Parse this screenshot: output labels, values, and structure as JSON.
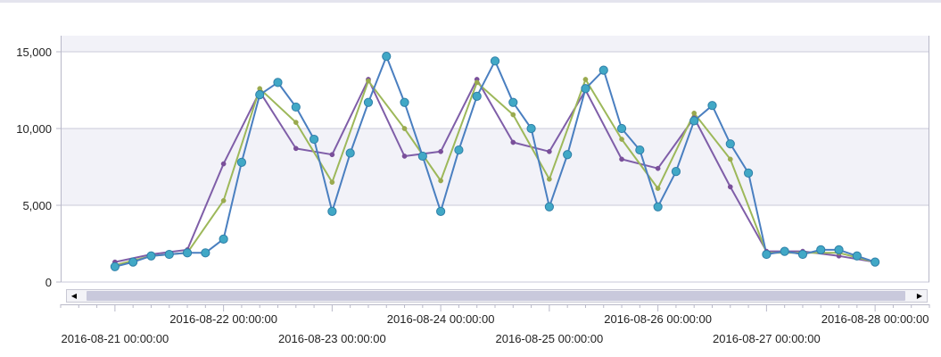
{
  "chart_data": {
    "type": "line",
    "title": "",
    "xlabel": "",
    "ylabel": "",
    "ylim": [
      0,
      15500
    ],
    "yticks": [
      0,
      5000,
      10000,
      15000
    ],
    "ytick_labels": [
      "0",
      "5,000",
      "10,000",
      "15,000"
    ],
    "xlim": [
      "2016-08-20 12:00:00",
      "2016-08-28 12:00:00"
    ],
    "xtick_labels_upper": [
      "2016-08-22 00:00:00",
      "2016-08-24 00:00:00",
      "2016-08-26 00:00:00",
      "2016-08-28 00:00:00"
    ],
    "xtick_labels_lower": [
      "2016-08-21 00:00:00",
      "2016-08-23 00:00:00",
      "2016-08-25 00:00:00",
      "2016-08-27 00:00:00"
    ],
    "grid": "horizontal bands",
    "series": [
      {
        "color": "#4a7fc0",
        "marker": "large-circle",
        "marker_color": "#41a8c6",
        "points": [
          [
            "2016-08-21 00:00",
            1000
          ],
          [
            "2016-08-21 04:00",
            1300
          ],
          [
            "2016-08-21 08:00",
            1700
          ],
          [
            "2016-08-21 12:00",
            1800
          ],
          [
            "2016-08-21 16:00",
            1900
          ],
          [
            "2016-08-21 20:00",
            1900
          ],
          [
            "2016-08-22 00:00",
            2800
          ],
          [
            "2016-08-22 04:00",
            7800
          ],
          [
            "2016-08-22 08:00",
            12200
          ],
          [
            "2016-08-22 12:00",
            13000
          ],
          [
            "2016-08-22 16:00",
            11400
          ],
          [
            "2016-08-22 20:00",
            9300
          ],
          [
            "2016-08-23 00:00",
            4600
          ],
          [
            "2016-08-23 04:00",
            8400
          ],
          [
            "2016-08-23 08:00",
            11700
          ],
          [
            "2016-08-23 12:00",
            14700
          ],
          [
            "2016-08-23 16:00",
            11700
          ],
          [
            "2016-08-23 20:00",
            8200
          ],
          [
            "2016-08-24 00:00",
            4600
          ],
          [
            "2016-08-24 04:00",
            8600
          ],
          [
            "2016-08-24 08:00",
            12100
          ],
          [
            "2016-08-24 12:00",
            14400
          ],
          [
            "2016-08-24 16:00",
            11700
          ],
          [
            "2016-08-24 20:00",
            10000
          ],
          [
            "2016-08-25 00:00",
            4900
          ],
          [
            "2016-08-25 04:00",
            8300
          ],
          [
            "2016-08-25 08:00",
            12600
          ],
          [
            "2016-08-25 12:00",
            13800
          ],
          [
            "2016-08-25 16:00",
            10000
          ],
          [
            "2016-08-25 20:00",
            8600
          ],
          [
            "2016-08-26 00:00",
            4900
          ],
          [
            "2016-08-26 04:00",
            7200
          ],
          [
            "2016-08-26 08:00",
            10500
          ],
          [
            "2016-08-26 12:00",
            11500
          ],
          [
            "2016-08-26 16:00",
            9000
          ],
          [
            "2016-08-26 20:00",
            7100
          ],
          [
            "2016-08-27 00:00",
            1800
          ],
          [
            "2016-08-27 04:00",
            2000
          ],
          [
            "2016-08-27 08:00",
            1800
          ],
          [
            "2016-08-27 12:00",
            2100
          ],
          [
            "2016-08-27 16:00",
            2100
          ],
          [
            "2016-08-27 20:00",
            1700
          ],
          [
            "2016-08-28 00:00",
            1300
          ]
        ]
      },
      {
        "color": "#9db85a",
        "marker": "small-circle",
        "marker_color": "#9aaa4e",
        "points": [
          [
            "2016-08-21 00:00",
            1100
          ],
          [
            "2016-08-21 08:00",
            1700
          ],
          [
            "2016-08-21 16:00",
            1900
          ],
          [
            "2016-08-22 00:00",
            5300
          ],
          [
            "2016-08-22 08:00",
            12600
          ],
          [
            "2016-08-22 16:00",
            10400
          ],
          [
            "2016-08-23 00:00",
            6500
          ],
          [
            "2016-08-23 08:00",
            13100
          ],
          [
            "2016-08-23 16:00",
            10000
          ],
          [
            "2016-08-24 00:00",
            6600
          ],
          [
            "2016-08-24 08:00",
            13000
          ],
          [
            "2016-08-24 16:00",
            10900
          ],
          [
            "2016-08-25 00:00",
            6700
          ],
          [
            "2016-08-25 08:00",
            13200
          ],
          [
            "2016-08-25 16:00",
            9300
          ],
          [
            "2016-08-26 00:00",
            6100
          ],
          [
            "2016-08-26 08:00",
            11000
          ],
          [
            "2016-08-26 16:00",
            8000
          ],
          [
            "2016-08-27 00:00",
            1900
          ],
          [
            "2016-08-27 08:00",
            1900
          ],
          [
            "2016-08-27 16:00",
            1900
          ],
          [
            "2016-08-28 00:00",
            1300
          ]
        ]
      },
      {
        "color": "#7f5ea8",
        "marker": "small-circle",
        "marker_color": "#7a4f9a",
        "points": [
          [
            "2016-08-21 00:00",
            1300
          ],
          [
            "2016-08-21 08:00",
            1800
          ],
          [
            "2016-08-21 16:00",
            2100
          ],
          [
            "2016-08-22 00:00",
            7700
          ],
          [
            "2016-08-22 08:00",
            12400
          ],
          [
            "2016-08-22 16:00",
            8700
          ],
          [
            "2016-08-23 00:00",
            8300
          ],
          [
            "2016-08-23 08:00",
            13200
          ],
          [
            "2016-08-23 16:00",
            8200
          ],
          [
            "2016-08-24 00:00",
            8500
          ],
          [
            "2016-08-24 08:00",
            13200
          ],
          [
            "2016-08-24 16:00",
            9100
          ],
          [
            "2016-08-25 00:00",
            8500
          ],
          [
            "2016-08-25 08:00",
            12500
          ],
          [
            "2016-08-25 16:00",
            8000
          ],
          [
            "2016-08-26 00:00",
            7400
          ],
          [
            "2016-08-26 08:00",
            10700
          ],
          [
            "2016-08-26 16:00",
            6200
          ],
          [
            "2016-08-27 00:00",
            2000
          ],
          [
            "2016-08-27 08:00",
            2000
          ],
          [
            "2016-08-27 16:00",
            1700
          ],
          [
            "2016-08-28 00:00",
            1300
          ]
        ]
      }
    ]
  },
  "colors": {
    "band": "#f2f2f8",
    "gridline": "#c9c9d9",
    "axis": "#b8b8c8"
  },
  "scrollbar": {
    "left_icon": "triangle-left-icon",
    "right_icon": "triangle-right-icon",
    "left_glyph": "◀",
    "right_glyph": "▶"
  }
}
